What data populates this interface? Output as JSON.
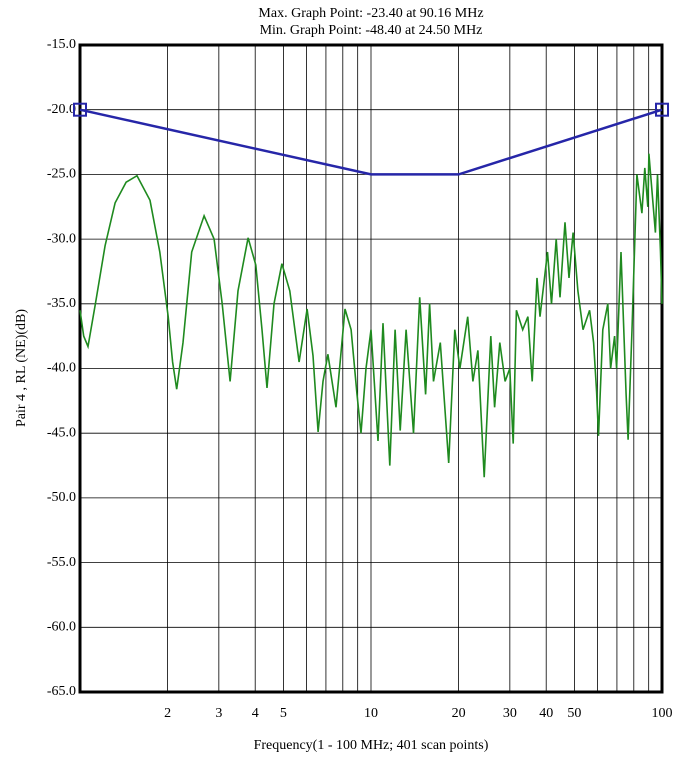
{
  "chart_data": {
    "type": "line",
    "title": "Max. Graph Point: -23.40 at 90.16 MHz",
    "subtitle": "Min. Graph Point: -48.40 at 24.50 MHz",
    "xlabel": "Frequency(1 - 100 MHz; 401 scan points)",
    "ylabel": "Pair 4 , RL (NE)(dB)",
    "xscale": "log",
    "xlim": [
      1,
      100
    ],
    "ylim": [
      -65,
      -15
    ],
    "xticks": [
      2,
      3,
      4,
      5,
      10,
      20,
      30,
      40,
      50,
      100
    ],
    "xminor": [
      6,
      7,
      8,
      9,
      60,
      70,
      80,
      90
    ],
    "yticks": [
      {
        "value": -15,
        "label": "-15.0"
      },
      {
        "value": -20,
        "label": "-20.0"
      },
      {
        "value": -25,
        "label": "-25.0"
      },
      {
        "value": -30,
        "label": "-30.0"
      },
      {
        "value": -35,
        "label": "-35.0"
      },
      {
        "value": -40,
        "label": "-40.0"
      },
      {
        "value": -45,
        "label": "-45.0"
      },
      {
        "value": -50,
        "label": "-50.0"
      },
      {
        "value": -55,
        "label": "-55.0"
      },
      {
        "value": -60,
        "label": "-60.0"
      },
      {
        "value": -65,
        "label": "-65.0"
      }
    ],
    "grid": true,
    "series": [
      {
        "color": "#2626a8",
        "markers": "ends",
        "x": [
          1,
          10,
          20,
          100
        ],
        "values": [
          -20,
          -25,
          -25,
          -20
        ]
      },
      {
        "color": "#1f8a1f",
        "x": [
          1.0,
          1.03,
          1.065,
          1.13,
          1.22,
          1.32,
          1.44,
          1.57,
          1.74,
          1.88,
          2.01,
          2.08,
          2.15,
          2.26,
          2.42,
          2.67,
          2.89,
          3.08,
          3.28,
          3.49,
          3.78,
          4.02,
          4.22,
          4.39,
          4.64,
          4.94,
          5.26,
          5.66,
          6.03,
          6.32,
          6.58,
          6.84,
          7.11,
          7.58,
          8.14,
          8.54,
          8.95,
          9.24,
          9.61,
          10.0,
          10.57,
          11.0,
          11.6,
          12.1,
          12.6,
          13.2,
          14.0,
          14.7,
          15.4,
          15.9,
          16.4,
          17.3,
          18.5,
          19.4,
          20.2,
          21.5,
          22.4,
          23.3,
          24.5,
          25.8,
          26.6,
          27.7,
          28.9,
          30.0,
          30.8,
          31.6,
          33.2,
          34.6,
          35.8,
          37.2,
          38.1,
          40.4,
          41.7,
          43.3,
          44.6,
          46.4,
          47.9,
          49.5,
          51.4,
          53.5,
          56.4,
          58.2,
          59.6,
          60.5,
          62.6,
          65.1,
          66.6,
          68.7,
          69.8,
          72.3,
          75.3,
          76.5,
          78.9,
          82.0,
          85.3,
          87.3,
          89.4,
          90.16,
          94.9,
          96.5,
          98.8,
          100
        ],
        "values": [
          -35.5,
          -37.5,
          -38.3,
          -35,
          -30.5,
          -27.2,
          -25.6,
          -25.1,
          -27,
          -31,
          -36,
          -39.5,
          -41.6,
          -38,
          -31,
          -28.2,
          -30,
          -35,
          -41,
          -34,
          -29.9,
          -32,
          -37,
          -41.5,
          -35,
          -31.9,
          -34,
          -39.5,
          -35.4,
          -39,
          -44.9,
          -41,
          -38.9,
          -43,
          -35.4,
          -37,
          -42,
          -45,
          -40,
          -37,
          -45.6,
          -36.5,
          -47.5,
          -37,
          -44.8,
          -37,
          -45,
          -34.5,
          -42,
          -35,
          -41,
          -38,
          -47.3,
          -37,
          -40,
          -36,
          -41,
          -38.6,
          -48.4,
          -37.5,
          -43,
          -38,
          -41,
          -40,
          -45.8,
          -35.5,
          -37,
          -36,
          -41,
          -33,
          -36,
          -31,
          -35,
          -30,
          -34.5,
          -28.7,
          -33,
          -29.5,
          -34,
          -37,
          -35.5,
          -38,
          -41.8,
          -45.2,
          -37,
          -35,
          -40,
          -37.5,
          -40,
          -31,
          -42,
          -45.5,
          -37,
          -25,
          -28,
          -24.5,
          -27.5,
          -23.4,
          -29.5,
          -25,
          -31,
          -35
        ]
      }
    ]
  }
}
